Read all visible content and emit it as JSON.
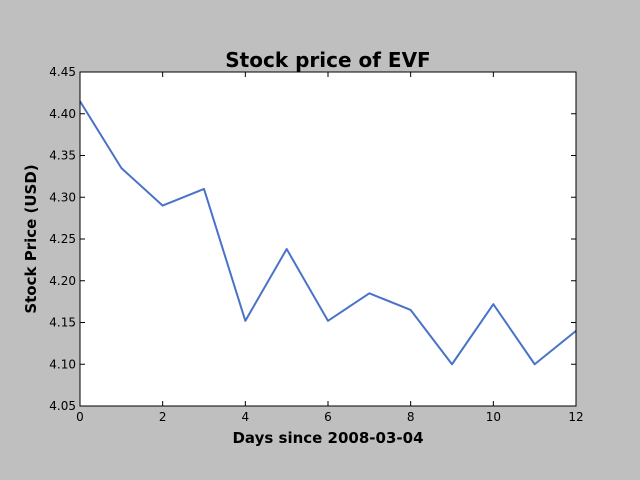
{
  "chart_data": {
    "type": "line",
    "title": "Stock price of EVF",
    "xlabel": "Days since 2008-03-04",
    "ylabel": "Stock Price (USD)",
    "xlim": [
      0,
      12
    ],
    "ylim": [
      4.05,
      4.45
    ],
    "xticks": [
      "0",
      "2",
      "4",
      "6",
      "8",
      "10",
      "12"
    ],
    "yticks": [
      "4.05",
      "4.10",
      "4.15",
      "4.20",
      "4.25",
      "4.30",
      "4.35",
      "4.40",
      "4.45"
    ],
    "grid": false,
    "series": [
      {
        "color": "#4a72c8",
        "x": [
          0,
          1,
          2,
          3,
          4,
          5,
          6,
          7,
          8,
          9,
          10,
          11,
          12
        ],
        "y": [
          4.415,
          4.335,
          4.29,
          4.31,
          4.152,
          4.238,
          4.152,
          4.185,
          4.165,
          4.1,
          4.172,
          4.1,
          4.14
        ]
      }
    ]
  }
}
